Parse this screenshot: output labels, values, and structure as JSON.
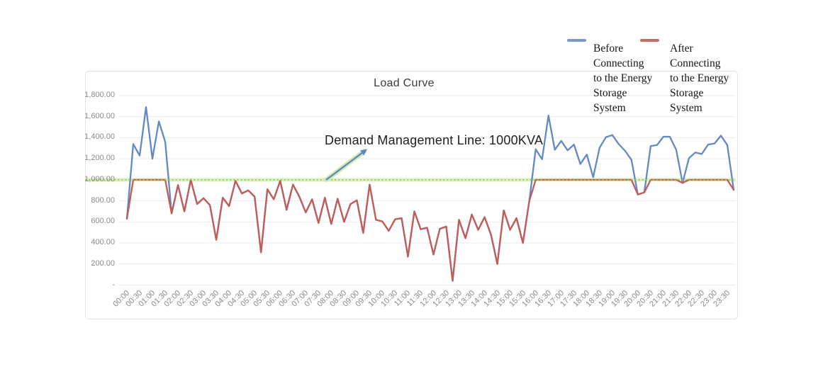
{
  "title": "Load Curve",
  "annotation": {
    "text": "Demand Management Line: 1000KVA"
  },
  "legend": [
    {
      "label": "Before Connecting to the Energy Storage System",
      "color": "#7b97cb"
    },
    {
      "label": "After Connecting to the Energy Storage System",
      "color": "#c96b62"
    }
  ],
  "y_axis": {
    "tick_labels": [
      "-",
      "200.00",
      "400.00",
      "600.00",
      "800.00",
      "1,000.00",
      "1,200.00",
      "1,400.00",
      "1,600.00",
      "1,800.00"
    ],
    "min": 0,
    "max": 1800,
    "step": 200
  },
  "x_axis": {
    "tick_labels": [
      "00:00",
      "00:30",
      "01:00",
      "01:30",
      "02:00",
      "02:30",
      "03:00",
      "03:30",
      "04:00",
      "04:30",
      "05:00",
      "05:30",
      "06:00",
      "06:30",
      "07:00",
      "07:30",
      "08:00",
      "08:30",
      "09:00",
      "09:30",
      "10:00",
      "10:30",
      "11:00",
      "11:30",
      "12:00",
      "12:30",
      "13:00",
      "13:30",
      "14:00",
      "14:30",
      "15:00",
      "15:30",
      "16:00",
      "16:30",
      "17:00",
      "17:30",
      "18:00",
      "18:30",
      "19:00",
      "19:30",
      "20:00",
      "20:30",
      "21:00",
      "21:30",
      "22:00",
      "22:30",
      "23:00",
      "23:30"
    ]
  },
  "chart_data": {
    "type": "line",
    "title": "Load Curve",
    "xlabel": "",
    "ylabel": "",
    "ylim": [
      0,
      1800
    ],
    "grid": true,
    "legend_position": "top-right",
    "x": [
      "00:00",
      "00:15",
      "00:30",
      "00:45",
      "01:00",
      "01:15",
      "01:30",
      "01:45",
      "02:00",
      "02:15",
      "02:30",
      "02:45",
      "03:00",
      "03:15",
      "03:30",
      "03:45",
      "04:00",
      "04:15",
      "04:30",
      "04:45",
      "05:00",
      "05:15",
      "05:30",
      "05:45",
      "06:00",
      "06:15",
      "06:30",
      "06:45",
      "07:00",
      "07:15",
      "07:30",
      "07:45",
      "08:00",
      "08:15",
      "08:30",
      "08:45",
      "09:00",
      "09:15",
      "09:30",
      "09:45",
      "10:00",
      "10:15",
      "10:30",
      "10:45",
      "11:00",
      "11:15",
      "11:30",
      "11:45",
      "12:00",
      "12:15",
      "12:30",
      "12:45",
      "13:00",
      "13:15",
      "13:30",
      "13:45",
      "14:00",
      "14:15",
      "14:30",
      "14:45",
      "15:00",
      "15:15",
      "15:30",
      "15:45",
      "16:00",
      "16:15",
      "16:30",
      "16:45",
      "17:00",
      "17:15",
      "17:30",
      "17:45",
      "18:00",
      "18:15",
      "18:30",
      "18:45",
      "19:00",
      "19:15",
      "19:30",
      "19:45",
      "20:00",
      "20:15",
      "20:30",
      "20:45",
      "21:00",
      "21:15",
      "21:30",
      "21:45",
      "22:00",
      "22:15",
      "22:30",
      "22:45",
      "23:00",
      "23:15",
      "23:30",
      "23:45"
    ],
    "series": [
      {
        "name": "Before Connecting to the Energy Storage System",
        "color": "#6289c4",
        "values": [
          630,
          1340,
          1230,
          1690,
          1200,
          1555,
          1360,
          680,
          950,
          700,
          1000,
          770,
          825,
          760,
          430,
          830,
          750,
          990,
          870,
          900,
          840,
          310,
          910,
          815,
          990,
          715,
          955,
          840,
          690,
          815,
          590,
          830,
          580,
          820,
          600,
          770,
          805,
          495,
          955,
          620,
          605,
          515,
          625,
          635,
          270,
          700,
          530,
          545,
          290,
          535,
          555,
          40,
          620,
          445,
          670,
          525,
          645,
          480,
          200,
          710,
          525,
          635,
          400,
          800,
          1290,
          1195,
          1610,
          1285,
          1370,
          1280,
          1335,
          1150,
          1240,
          1025,
          1305,
          1405,
          1425,
          1340,
          1275,
          1190,
          860,
          880,
          1320,
          1330,
          1410,
          1410,
          1285,
          970,
          1205,
          1260,
          1245,
          1335,
          1345,
          1420,
          1330,
          905
        ]
      },
      {
        "name": "After Connecting to the Energy Storage System",
        "color": "#c35b57",
        "values": [
          630,
          1000,
          1000,
          1000,
          1000,
          1000,
          1000,
          680,
          950,
          700,
          1000,
          770,
          825,
          760,
          430,
          830,
          750,
          990,
          870,
          900,
          840,
          310,
          910,
          815,
          990,
          715,
          955,
          840,
          690,
          815,
          590,
          830,
          580,
          820,
          600,
          770,
          805,
          495,
          955,
          620,
          605,
          515,
          625,
          635,
          270,
          700,
          530,
          545,
          290,
          535,
          555,
          40,
          620,
          445,
          670,
          525,
          645,
          480,
          200,
          710,
          525,
          635,
          400,
          800,
          1000,
          1000,
          1000,
          1000,
          1000,
          1000,
          1000,
          1000,
          1000,
          1000,
          1000,
          1000,
          1000,
          1000,
          1000,
          1000,
          860,
          880,
          1000,
          1000,
          1000,
          1000,
          1000,
          970,
          1000,
          1000,
          1000,
          1000,
          1000,
          1000,
          1000,
          905
        ]
      }
    ],
    "demand_line": {
      "value": 1000,
      "label": "Demand Management Line: 1000KVA",
      "color": "#92c853"
    }
  }
}
